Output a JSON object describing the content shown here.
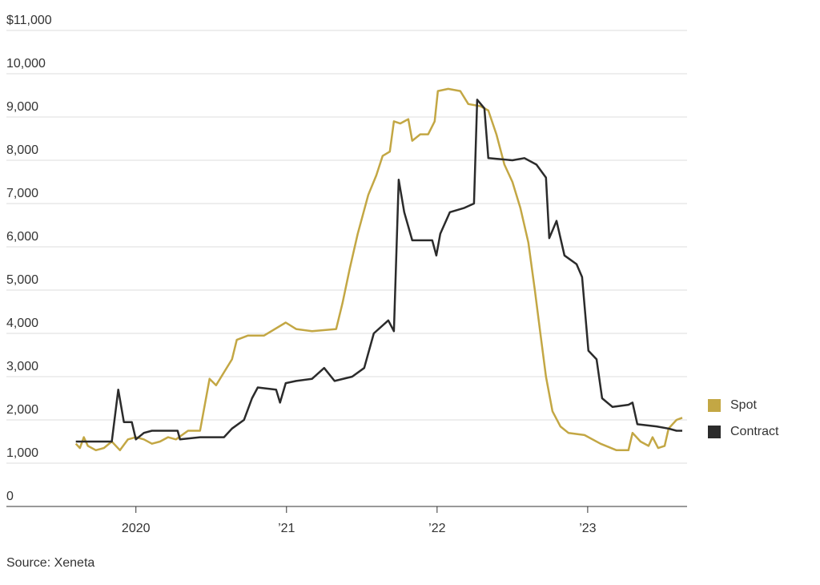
{
  "chart_data": {
    "type": "line",
    "source": "Source: Xeneta",
    "xlim": [
      2019.14,
      2023.66
    ],
    "xticks": [
      2020,
      {
        "value": 2021,
        "label": "’21"
      },
      {
        "value": 2022,
        "label": "’22"
      },
      {
        "value": 2023,
        "label": "’23"
      }
    ],
    "ylim": [
      0,
      11000
    ],
    "yticks": [
      0,
      {
        "value": 1000,
        "label": "1,000"
      },
      {
        "value": 2000,
        "label": "2,000"
      },
      {
        "value": 3000,
        "label": "3,000"
      },
      {
        "value": 4000,
        "label": "4,000"
      },
      {
        "value": 5000,
        "label": "5,000"
      },
      {
        "value": 6000,
        "label": "6,000"
      },
      {
        "value": 7000,
        "label": "7,000"
      },
      {
        "value": 8000,
        "label": "8,000"
      },
      {
        "value": 9000,
        "label": "9,000"
      },
      {
        "value": 10000,
        "label": "10,000"
      },
      {
        "value": 11000,
        "label": "$11,000"
      }
    ],
    "grid": true,
    "legend": "right",
    "series": [
      {
        "name": "Spot",
        "color": "#c3a744",
        "x": [
          2019.601,
          2019.628,
          2019.654,
          2019.681,
          2019.734,
          2019.787,
          2019.84,
          2019.894,
          2019.947,
          2020.0,
          2020.053,
          2020.106,
          2020.16,
          2020.213,
          2020.266,
          2020.346,
          2020.426,
          2020.489,
          2020.532,
          2020.585,
          2020.638,
          2020.67,
          2020.745,
          2020.851,
          2020.995,
          2021.064,
          2021.17,
          2021.33,
          2021.372,
          2021.42,
          2021.473,
          2021.543,
          2021.596,
          2021.638,
          2021.686,
          2021.713,
          2021.755,
          2021.809,
          2021.835,
          2021.888,
          2021.941,
          2021.984,
          2022.005,
          2022.074,
          2022.154,
          2022.207,
          2022.287,
          2022.34,
          2022.394,
          2022.447,
          2022.5,
          2022.553,
          2022.606,
          2022.649,
          2022.686,
          2022.723,
          2022.766,
          2022.819,
          2022.872,
          2022.979,
          2023.085,
          2023.191,
          2023.271,
          2023.298,
          2023.351,
          2023.404,
          2023.431,
          2023.468,
          2023.511,
          2023.537,
          2023.59,
          2023.628
        ],
        "values": [
          1450,
          1350,
          1600,
          1400,
          1300,
          1350,
          1500,
          1300,
          1550,
          1600,
          1550,
          1450,
          1500,
          1600,
          1550,
          1750,
          1750,
          2950,
          2800,
          3100,
          3400,
          3850,
          3950,
          3950,
          4250,
          4100,
          4050,
          4100,
          4700,
          5500,
          6300,
          7200,
          7650,
          8100,
          8200,
          8900,
          8850,
          8950,
          8450,
          8600,
          8600,
          8900,
          9600,
          9650,
          9600,
          9300,
          9250,
          9150,
          8600,
          7900,
          7500,
          6900,
          6100,
          5000,
          4000,
          3000,
          2200,
          1850,
          1700,
          1650,
          1450,
          1300,
          1300,
          1700,
          1500,
          1400,
          1600,
          1350,
          1400,
          1800,
          2000,
          2050
        ]
      },
      {
        "name": "Contract",
        "color": "#2b2b2b",
        "x": [
          2019.601,
          2019.734,
          2019.84,
          2019.883,
          2019.92,
          2019.973,
          2020.0,
          2020.053,
          2020.106,
          2020.277,
          2020.293,
          2020.426,
          2020.585,
          2020.638,
          2020.718,
          2020.771,
          2020.809,
          2020.931,
          2020.957,
          2020.995,
          2021.064,
          2021.17,
          2021.25,
          2021.319,
          2021.436,
          2021.516,
          2021.58,
          2021.676,
          2021.713,
          2021.745,
          2021.782,
          2021.835,
          2021.968,
          2021.995,
          2022.021,
          2022.085,
          2022.181,
          2022.245,
          2022.266,
          2022.314,
          2022.34,
          2022.5,
          2022.58,
          2022.66,
          2022.723,
          2022.745,
          2022.793,
          2022.846,
          2022.926,
          2022.963,
          2023.005,
          2023.059,
          2023.096,
          2023.165,
          2023.271,
          2023.298,
          2023.33,
          2023.457,
          2023.537,
          2023.59,
          2023.628
        ],
        "values": [
          1500,
          1500,
          1500,
          2700,
          1950,
          1950,
          1550,
          1700,
          1750,
          1750,
          1550,
          1600,
          1600,
          1800,
          2000,
          2500,
          2750,
          2700,
          2400,
          2850,
          2900,
          2950,
          3200,
          2900,
          3000,
          3200,
          4000,
          4300,
          4050,
          7550,
          6800,
          6150,
          6150,
          5800,
          6300,
          6800,
          6900,
          7000,
          9400,
          9200,
          8050,
          8000,
          8050,
          7900,
          7600,
          6200,
          6600,
          5800,
          5600,
          5300,
          3600,
          3400,
          2500,
          2300,
          2350,
          2400,
          1900,
          1850,
          1800,
          1750,
          1750
        ]
      }
    ]
  }
}
